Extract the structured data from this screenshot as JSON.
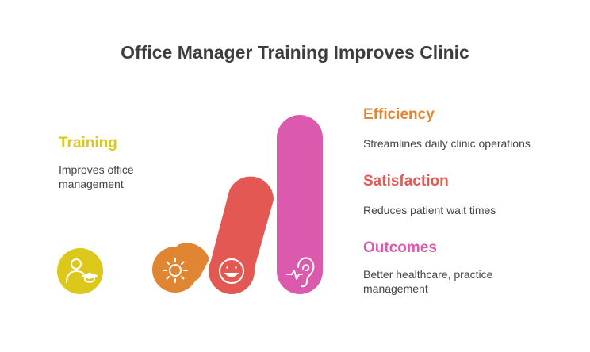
{
  "title": "Office Manager Training Improves Clinic",
  "items": [
    {
      "heading": "Training",
      "description_lines": [
        "Improves office",
        "management"
      ],
      "color": "#dcc81a",
      "icon": "graduate-user-icon"
    },
    {
      "heading": "Efficiency",
      "description_lines": [
        "Streamlines daily clinic operations"
      ],
      "color": "#e08633",
      "icon": "gear-sun-icon"
    },
    {
      "heading": "Satisfaction",
      "description_lines": [
        "Reduces patient wait times"
      ],
      "color": "#e45853",
      "icon": "smiley-face-icon"
    },
    {
      "heading": "Outcomes",
      "description_lines": [
        "Better healthcare, practice",
        "management"
      ],
      "color": "#db5aae",
      "icon": "ear-pulse-icon"
    }
  ]
}
